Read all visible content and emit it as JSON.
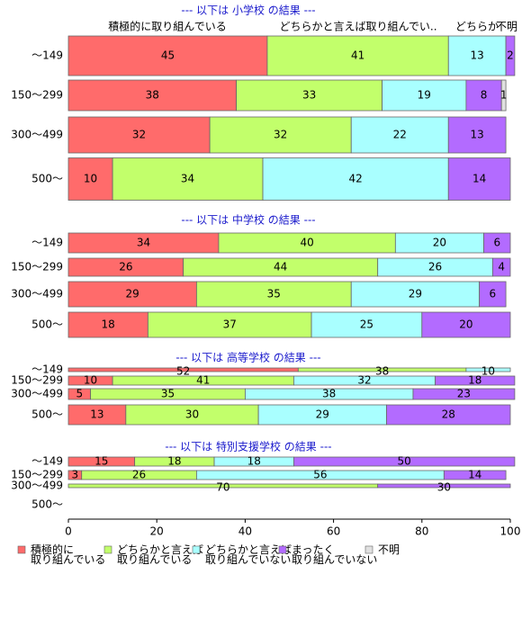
{
  "chart_data": {
    "type": "stacked_barh",
    "xlim": [
      0,
      100
    ],
    "xticks": [
      0,
      20,
      40,
      60,
      80,
      100
    ],
    "header_labels": [
      "積極的に取り組んでいる",
      "どちらかと言えば取り組んでい..",
      "どちらか",
      "不明"
    ],
    "series": [
      {
        "name": "積極的に\n取り組んでいる",
        "color": "#ff6b6b"
      },
      {
        "name": "どちらかと言えば\n取り組んでいる",
        "color": "#c2ff6b"
      },
      {
        "name": "どちらかと言えば\n取り組んでいない",
        "color": "#a9ffff"
      },
      {
        "name": "まったく\n取り組んでいない",
        "color": "#b36bff"
      },
      {
        "name": "不明",
        "color": "#e0e0e0"
      }
    ],
    "panels": [
      {
        "title": "--- 以下は 小学校 の結果 ---",
        "categories": [
          "～149",
          "150～299",
          "300～499",
          "500～"
        ],
        "values": [
          [
            45,
            41,
            13,
            2,
            null
          ],
          [
            38,
            33,
            19,
            8,
            1
          ],
          [
            32,
            32,
            22,
            13,
            null
          ],
          [
            10,
            34,
            42,
            14,
            null
          ]
        ]
      },
      {
        "title": "--- 以下は 中学校 の結果 ---",
        "categories": [
          "～149",
          "150～299",
          "300～499",
          "500～"
        ],
        "values": [
          [
            34,
            40,
            20,
            6,
            null
          ],
          [
            26,
            44,
            26,
            4,
            null
          ],
          [
            29,
            35,
            29,
            6,
            null
          ],
          [
            18,
            37,
            25,
            20,
            null
          ]
        ]
      },
      {
        "title": "--- 以下は 高等学校 の結果 ---",
        "categories": [
          "～149",
          "150～299",
          "300～499",
          "500～"
        ],
        "values": [
          [
            52,
            38,
            10,
            null,
            null
          ],
          [
            10,
            41,
            32,
            18,
            null
          ],
          [
            5,
            35,
            38,
            23,
            null
          ],
          [
            13,
            30,
            29,
            28,
            null
          ]
        ]
      },
      {
        "title": "--- 以下は 特別支援学校 の結果 ---",
        "categories": [
          "～149",
          "150～299",
          "300～499",
          "500～"
        ],
        "values": [
          [
            15,
            18,
            18,
            50,
            null
          ],
          [
            3,
            26,
            56,
            14,
            null
          ],
          [
            null,
            70,
            null,
            30,
            null
          ],
          [
            null,
            null,
            null,
            null,
            null
          ]
        ]
      }
    ]
  }
}
